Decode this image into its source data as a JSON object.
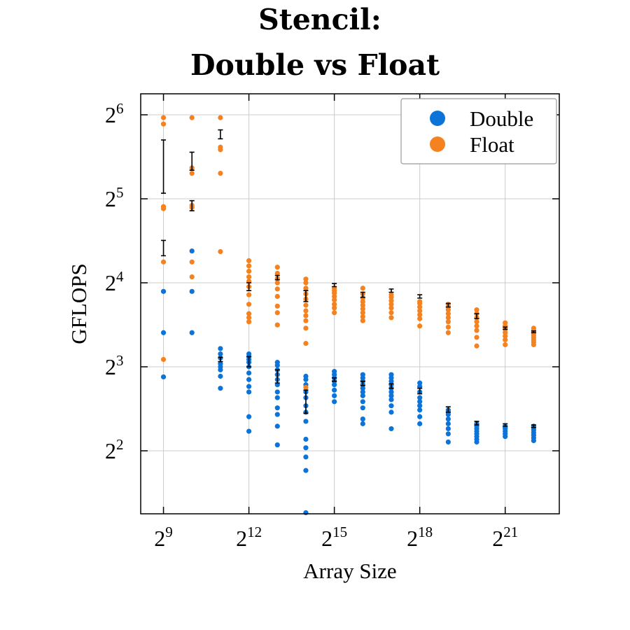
{
  "chart_data": {
    "type": "scatter",
    "title_lines": [
      "Stencil:",
      "Double vs Float"
    ],
    "xlabel": "Array Size",
    "ylabel": "GFLOPS",
    "xscale": "log2",
    "yscale": "log2",
    "xlim_log2": [
      8.2,
      22.9
    ],
    "ylim_log2": [
      1.25,
      6.25
    ],
    "xticks": [
      {
        "base": "2",
        "exp": "9",
        "log2": 9
      },
      {
        "base": "2",
        "exp": "12",
        "log2": 12
      },
      {
        "base": "2",
        "exp": "15",
        "log2": 15
      },
      {
        "base": "2",
        "exp": "18",
        "log2": 18
      },
      {
        "base": "2",
        "exp": "21",
        "log2": 21
      }
    ],
    "yticks": [
      {
        "base": "2",
        "exp": "2",
        "log2": 2
      },
      {
        "base": "2",
        "exp": "3",
        "log2": 3
      },
      {
        "base": "2",
        "exp": "4",
        "log2": 4
      },
      {
        "base": "2",
        "exp": "5",
        "log2": 5
      },
      {
        "base": "2",
        "exp": "6",
        "log2": 6
      }
    ],
    "grid": true,
    "legend_position": "top-right",
    "series": [
      {
        "name": "Double",
        "color": "#0c74d8",
        "points": [
          {
            "x": 512,
            "y": [
              7.36,
              10.6,
              14.9
            ]
          },
          {
            "x": 1024,
            "y": [
              10.6,
              14.9,
              20.8
            ]
          },
          {
            "x": 2048,
            "y": [
              6.7,
              7.4,
              7.8,
              8.0,
              8.2,
              8.6,
              8.9,
              9.3
            ]
          },
          {
            "x": 4096,
            "y": [
              4.7,
              5.3,
              6.5,
              6.8,
              7.2,
              7.6,
              8.0,
              8.3,
              8.5,
              8.7,
              8.9
            ]
          },
          {
            "x": 8192,
            "y": [
              4.2,
              4.9,
              5.4,
              5.7,
              6.2,
              6.5,
              6.9,
              7.2,
              7.5,
              7.8,
              8.1,
              8.3
            ]
          },
          {
            "x": 16384,
            "y": [
              2.4,
              3.4,
              3.8,
              4.1,
              4.4,
              5.1,
              5.5,
              5.8,
              6.2,
              6.5,
              6.9,
              7.2,
              7.4
            ]
          },
          {
            "x": 32768,
            "y": [
              6.0,
              6.3,
              6.6,
              6.9,
              7.1,
              7.3,
              7.5,
              7.7
            ]
          },
          {
            "x": 65536,
            "y": [
              5.0,
              5.2,
              5.7,
              6.0,
              6.3,
              6.5,
              6.7,
              6.9,
              7.1,
              7.3,
              7.5
            ]
          },
          {
            "x": 131072,
            "y": [
              4.8,
              5.5,
              5.8,
              6.1,
              6.3,
              6.5,
              6.7,
              6.9,
              7.1,
              7.3,
              7.5
            ]
          },
          {
            "x": 262144,
            "y": [
              5.0,
              5.3,
              5.6,
              5.8,
              6.0,
              6.2,
              6.5,
              6.8,
              7.0
            ]
          },
          {
            "x": 524288,
            "y": [
              4.3,
              4.6,
              4.8,
              5.0,
              5.2,
              5.4,
              5.5,
              5.6
            ]
          },
          {
            "x": 1048576,
            "y": [
              4.3,
              4.4,
              4.5,
              4.6,
              4.7,
              4.8,
              4.9,
              5.0
            ]
          },
          {
            "x": 2097152,
            "y": [
              4.5,
              4.6,
              4.7,
              4.8,
              4.85,
              4.9
            ]
          },
          {
            "x": 4194304,
            "y": [
              4.35,
              4.45,
              4.55,
              4.65,
              4.75,
              4.85,
              4.9
            ]
          }
        ],
        "mean_error": [
          {
            "x": 4096,
            "low": 8.0,
            "high": 8.7
          },
          {
            "x": 8192,
            "low": 7.0,
            "high": 7.8
          },
          {
            "x": 16384,
            "low": 5.45,
            "high": 6.6
          },
          {
            "x": 2048,
            "low": 8.35,
            "high": 8.65
          },
          {
            "x": 32768,
            "low": 7.1,
            "high": 7.3
          },
          {
            "x": 65536,
            "low": 6.85,
            "high": 7.1
          },
          {
            "x": 131072,
            "low": 6.7,
            "high": 6.95
          },
          {
            "x": 262144,
            "low": 6.4,
            "high": 6.7
          },
          {
            "x": 524288,
            "low": 5.5,
            "high": 5.75
          },
          {
            "x": 1048576,
            "low": 4.95,
            "high": 5.1
          },
          {
            "x": 2097152,
            "low": 4.9,
            "high": 5.0
          },
          {
            "x": 4194304,
            "low": 4.85,
            "high": 4.95
          }
        ]
      },
      {
        "name": "Float",
        "color": "#f58220",
        "points": [
          {
            "x": 512,
            "y": [
              8.5,
              19.0,
              29.5,
              30.0,
              59.3,
              62.5
            ]
          },
          {
            "x": 1024,
            "y": [
              16.8,
              19.0,
              29.8,
              30.3,
              39.5,
              41.3,
              62.5
            ]
          },
          {
            "x": 2048,
            "y": [
              20.7,
              39.5,
              48.0,
              49.0,
              62.5
            ]
          },
          {
            "x": 4096,
            "y": [
              11.6,
              12.0,
              12.4,
              13.4,
              14.5,
              15.5,
              16.2,
              16.8,
              17.6,
              18.4,
              19.2
            ]
          },
          {
            "x": 8192,
            "y": [
              11.3,
              12.5,
              13.2,
              14.3,
              15.2,
              16.0,
              16.6,
              17.3,
              18.2
            ]
          },
          {
            "x": 16384,
            "y": [
              6.75,
              9.7,
              11.0,
              11.7,
              12.2,
              12.7,
              13.3,
              14.0,
              14.6,
              15.3,
              16.0,
              16.5
            ]
          },
          {
            "x": 32768,
            "y": [
              12.5,
              13.0,
              13.4,
              13.9,
              14.3,
              14.7,
              15.0,
              15.3
            ]
          },
          {
            "x": 65536,
            "y": [
              11.7,
              12.1,
              12.5,
              12.9,
              13.3,
              13.7,
              14.1,
              14.6,
              15.3
            ]
          },
          {
            "x": 131072,
            "y": [
              12.0,
              12.5,
              13.0,
              13.4,
              13.8,
              14.2,
              14.5
            ]
          },
          {
            "x": 262144,
            "y": [
              11.2,
              11.9,
              12.3,
              12.7,
              13.1,
              13.5,
              13.7
            ]
          },
          {
            "x": 524288,
            "y": [
              10.6,
              11.1,
              11.6,
              12.0,
              12.4,
              12.8,
              13.1,
              13.4
            ]
          },
          {
            "x": 1048576,
            "y": [
              9.5,
              10.2,
              10.8,
              11.2,
              11.6,
              12.0,
              12.4,
              12.8
            ]
          },
          {
            "x": 2097152,
            "y": [
              9.6,
              10.0,
              10.3,
              10.6,
              10.9,
              11.2,
              11.5
            ]
          },
          {
            "x": 4194304,
            "y": [
              9.6,
              9.8,
              10.0,
              10.2,
              10.4,
              10.6,
              10.8,
              11.0
            ]
          }
        ],
        "mean_error": [
          {
            "x": 512,
            "low": 33.5,
            "high": 52.0
          },
          {
            "x": 1024,
            "low": 40.5,
            "high": 47.0
          },
          {
            "x": 2048,
            "low": 52.5,
            "high": 56.5
          },
          {
            "x": 512,
            "low": 20.0,
            "high": 22.7
          },
          {
            "x": 1024,
            "low": 29.0,
            "high": 31.5
          },
          {
            "x": 4096,
            "low": 15.0,
            "high": 16.0
          },
          {
            "x": 8192,
            "low": 16.4,
            "high": 17.0
          },
          {
            "x": 16384,
            "low": 13.7,
            "high": 15.0
          },
          {
            "x": 32768,
            "low": 15.5,
            "high": 15.9
          },
          {
            "x": 65536,
            "low": 14.2,
            "high": 14.8
          },
          {
            "x": 131072,
            "low": 14.8,
            "high": 15.2
          },
          {
            "x": 262144,
            "low": 14.1,
            "high": 14.5
          },
          {
            "x": 524288,
            "low": 13.1,
            "high": 13.5
          },
          {
            "x": 1048576,
            "low": 11.9,
            "high": 12.4
          },
          {
            "x": 2097152,
            "low": 10.9,
            "high": 11.1
          },
          {
            "x": 4194304,
            "low": 10.6,
            "high": 10.75
          }
        ]
      }
    ]
  }
}
